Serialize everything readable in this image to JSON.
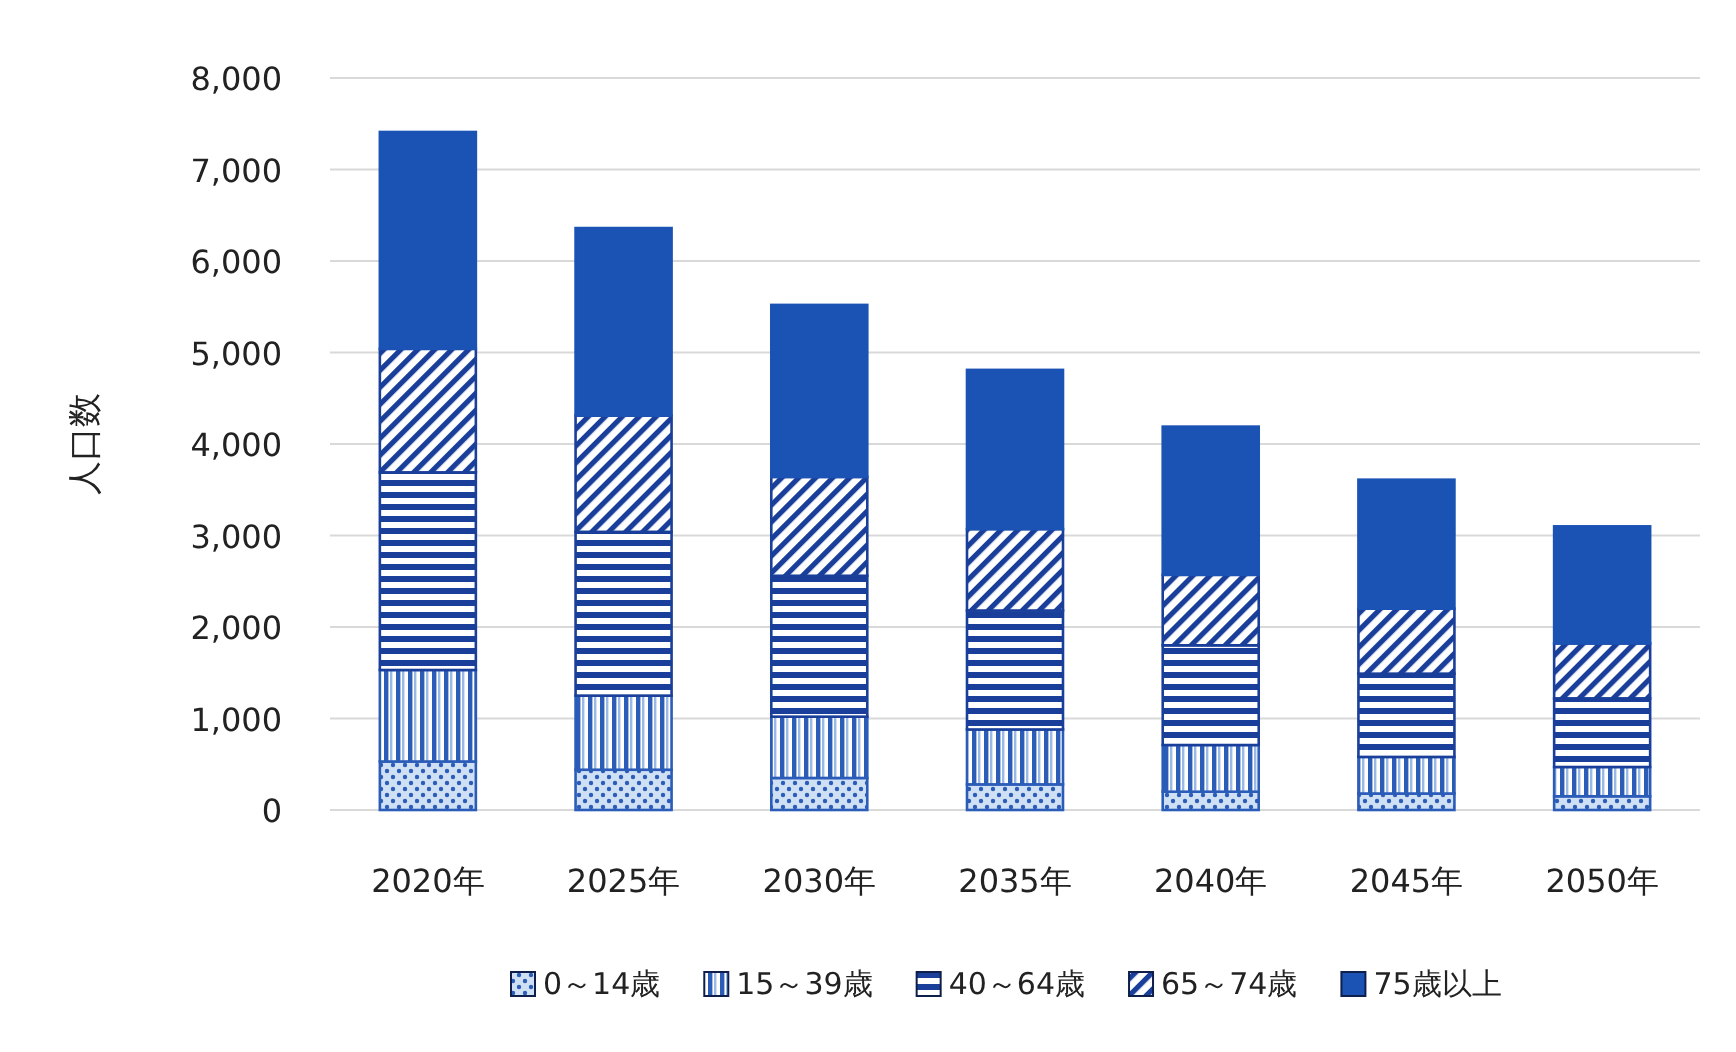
{
  "chart_data": {
    "type": "bar",
    "stacked": true,
    "ylabel": "人口数",
    "categories": [
      "2020年",
      "2025年",
      "2030年",
      "2035年",
      "2040年",
      "2045年",
      "2050年"
    ],
    "series": [
      {
        "name": "0～14歳",
        "color": "#2b5cb8",
        "values": [
          530,
          440,
          350,
          280,
          200,
          180,
          150
        ]
      },
      {
        "name": "15～39歳",
        "color": "#2b5cb8",
        "values": [
          1000,
          810,
          670,
          600,
          510,
          400,
          320
        ]
      },
      {
        "name": "40～64歳",
        "color": "#1a3f9a",
        "values": [
          2160,
          1790,
          1540,
          1300,
          1090,
          910,
          750
        ]
      },
      {
        "name": "65～74歳",
        "color": "#1a3f9a",
        "values": [
          1350,
          1270,
          1080,
          890,
          770,
          710,
          600
        ]
      },
      {
        "name": "75歳以上",
        "color": "#1b53b4",
        "values": [
          2370,
          2050,
          1880,
          1740,
          1620,
          1410,
          1280
        ]
      }
    ],
    "ylim": [
      0,
      8000
    ],
    "yticks": [
      {
        "value": 0,
        "label": "0"
      },
      {
        "value": 1000,
        "label": "1,000"
      },
      {
        "value": 2000,
        "label": "2,000"
      },
      {
        "value": 3000,
        "label": "3,000"
      },
      {
        "value": 4000,
        "label": "4,000"
      },
      {
        "value": 5000,
        "label": "5,000"
      },
      {
        "value": 6000,
        "label": "6,000"
      },
      {
        "value": 7000,
        "label": "7,000"
      },
      {
        "value": 8000,
        "label": "8,000"
      }
    ],
    "grid": "y",
    "legend": "bottom"
  }
}
